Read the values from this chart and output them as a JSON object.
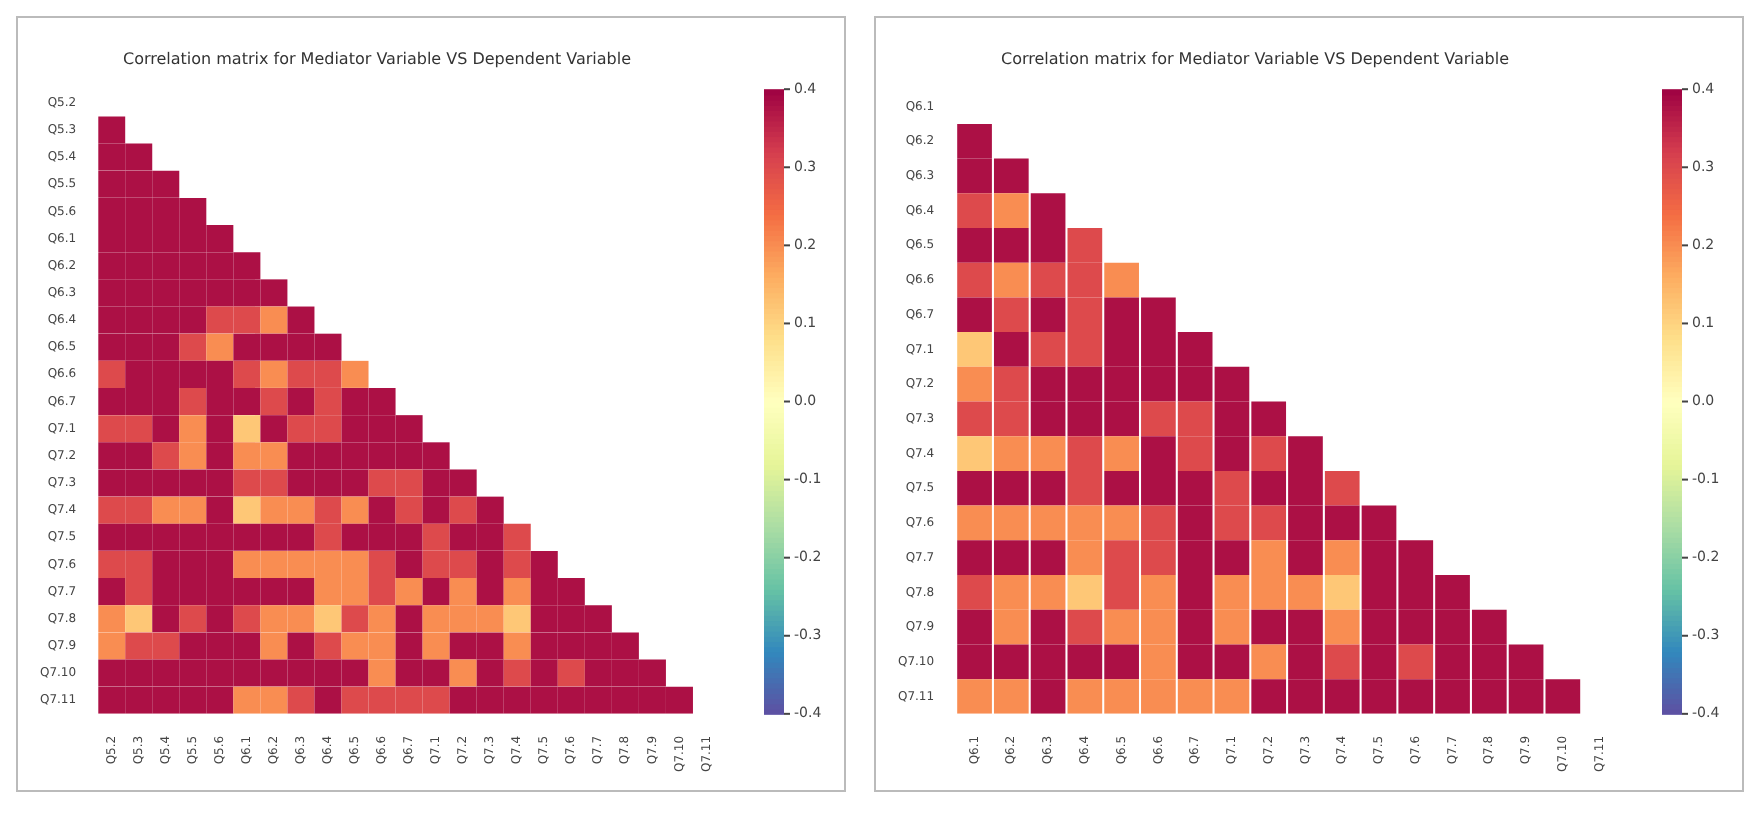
{
  "chart_data": [
    {
      "type": "heatmap",
      "title": "Correlation matrix for Mediator Variable VS Dependent Variable",
      "categories": [
        "Q5.2",
        "Q5.3",
        "Q5.4",
        "Q5.5",
        "Q5.6",
        "Q6.1",
        "Q6.2",
        "Q6.3",
        "Q6.4",
        "Q6.5",
        "Q6.6",
        "Q6.7",
        "Q7.1",
        "Q7.2",
        "Q7.3",
        "Q7.4",
        "Q7.5",
        "Q7.6",
        "Q7.7",
        "Q7.8",
        "Q7.9",
        "Q7.10",
        "Q7.11"
      ],
      "y_categories": [
        "Q5.2",
        "Q5.3",
        "Q5.4",
        "Q5.5",
        "Q5.6",
        "Q6.1",
        "Q6.2",
        "Q6.3",
        "Q6.4",
        "Q6.5",
        "Q6.6",
        "Q6.7",
        "Q7.1",
        "Q7.2",
        "Q7.3",
        "Q7.4",
        "Q7.5",
        "Q7.6",
        "Q7.7",
        "Q7.8",
        "Q7.9",
        "Q7.10",
        "Q7.11"
      ],
      "cells": [
        [
          null,
          null,
          null,
          null,
          null,
          null,
          null,
          null,
          null,
          null,
          null,
          null,
          null,
          null,
          null,
          null,
          null,
          null,
          null,
          null,
          null,
          null,
          null
        ],
        [
          0.38,
          null,
          null,
          null,
          null,
          null,
          null,
          null,
          null,
          null,
          null,
          null,
          null,
          null,
          null,
          null,
          null,
          null,
          null,
          null,
          null,
          null,
          null
        ],
        [
          0.38,
          0.38,
          null,
          null,
          null,
          null,
          null,
          null,
          null,
          null,
          null,
          null,
          null,
          null,
          null,
          null,
          null,
          null,
          null,
          null,
          null,
          null,
          null
        ],
        [
          0.38,
          0.38,
          0.38,
          null,
          null,
          null,
          null,
          null,
          null,
          null,
          null,
          null,
          null,
          null,
          null,
          null,
          null,
          null,
          null,
          null,
          null,
          null,
          null
        ],
        [
          0.38,
          0.38,
          0.38,
          0.38,
          null,
          null,
          null,
          null,
          null,
          null,
          null,
          null,
          null,
          null,
          null,
          null,
          null,
          null,
          null,
          null,
          null,
          null,
          null
        ],
        [
          0.38,
          0.38,
          0.38,
          0.38,
          0.38,
          null,
          null,
          null,
          null,
          null,
          null,
          null,
          null,
          null,
          null,
          null,
          null,
          null,
          null,
          null,
          null,
          null,
          null
        ],
        [
          0.38,
          0.38,
          0.38,
          0.38,
          0.38,
          0.38,
          null,
          null,
          null,
          null,
          null,
          null,
          null,
          null,
          null,
          null,
          null,
          null,
          null,
          null,
          null,
          null,
          null
        ],
        [
          0.38,
          0.38,
          0.38,
          0.38,
          0.38,
          0.38,
          0.38,
          null,
          null,
          null,
          null,
          null,
          null,
          null,
          null,
          null,
          null,
          null,
          null,
          null,
          null,
          null,
          null
        ],
        [
          0.38,
          0.38,
          0.38,
          0.38,
          0.3,
          0.3,
          0.2,
          0.38,
          null,
          null,
          null,
          null,
          null,
          null,
          null,
          null,
          null,
          null,
          null,
          null,
          null,
          null,
          null
        ],
        [
          0.38,
          0.38,
          0.38,
          0.3,
          0.2,
          0.38,
          0.38,
          0.38,
          0.38,
          null,
          null,
          null,
          null,
          null,
          null,
          null,
          null,
          null,
          null,
          null,
          null,
          null,
          null
        ],
        [
          0.3,
          0.38,
          0.38,
          0.38,
          0.38,
          0.3,
          0.2,
          0.3,
          0.3,
          0.2,
          null,
          null,
          null,
          null,
          null,
          null,
          null,
          null,
          null,
          null,
          null,
          null,
          null
        ],
        [
          0.38,
          0.38,
          0.38,
          0.3,
          0.38,
          0.38,
          0.3,
          0.38,
          0.3,
          0.38,
          0.38,
          null,
          null,
          null,
          null,
          null,
          null,
          null,
          null,
          null,
          null,
          null,
          null
        ],
        [
          0.3,
          0.3,
          0.38,
          0.2,
          0.38,
          0.12,
          0.38,
          0.3,
          0.3,
          0.38,
          0.38,
          0.38,
          null,
          null,
          null,
          null,
          null,
          null,
          null,
          null,
          null,
          null,
          null
        ],
        [
          0.38,
          0.38,
          0.3,
          0.2,
          0.38,
          0.2,
          0.2,
          0.38,
          0.38,
          0.38,
          0.38,
          0.38,
          0.38,
          null,
          null,
          null,
          null,
          null,
          null,
          null,
          null,
          null,
          null
        ],
        [
          0.38,
          0.38,
          0.38,
          0.38,
          0.38,
          0.3,
          0.3,
          0.38,
          0.38,
          0.38,
          0.3,
          0.3,
          0.38,
          0.38,
          null,
          null,
          null,
          null,
          null,
          null,
          null,
          null,
          null
        ],
        [
          0.3,
          0.3,
          0.2,
          0.2,
          0.38,
          0.12,
          0.2,
          0.2,
          0.3,
          0.2,
          0.38,
          0.3,
          0.38,
          0.3,
          0.38,
          null,
          null,
          null,
          null,
          null,
          null,
          null,
          null
        ],
        [
          0.38,
          0.38,
          0.38,
          0.38,
          0.38,
          0.38,
          0.38,
          0.38,
          0.3,
          0.38,
          0.38,
          0.38,
          0.3,
          0.38,
          0.38,
          0.3,
          null,
          null,
          null,
          null,
          null,
          null,
          null
        ],
        [
          0.3,
          0.3,
          0.38,
          0.38,
          0.38,
          0.2,
          0.2,
          0.2,
          0.2,
          0.2,
          0.3,
          0.38,
          0.3,
          0.3,
          0.38,
          0.3,
          0.38,
          null,
          null,
          null,
          null,
          null,
          null
        ],
        [
          0.38,
          0.3,
          0.38,
          0.38,
          0.38,
          0.38,
          0.38,
          0.38,
          0.2,
          0.2,
          0.3,
          0.2,
          0.38,
          0.2,
          0.38,
          0.2,
          0.38,
          0.38,
          null,
          null,
          null,
          null,
          null
        ],
        [
          0.2,
          0.12,
          0.38,
          0.3,
          0.38,
          0.3,
          0.2,
          0.2,
          0.12,
          0.3,
          0.2,
          0.38,
          0.2,
          0.2,
          0.2,
          0.12,
          0.38,
          0.38,
          0.38,
          null,
          null,
          null,
          null
        ],
        [
          0.2,
          0.3,
          0.3,
          0.38,
          0.38,
          0.38,
          0.2,
          0.38,
          0.3,
          0.2,
          0.2,
          0.38,
          0.2,
          0.38,
          0.38,
          0.2,
          0.38,
          0.38,
          0.38,
          0.38,
          null,
          null,
          null
        ],
        [
          0.38,
          0.38,
          0.38,
          0.38,
          0.38,
          0.38,
          0.38,
          0.38,
          0.38,
          0.38,
          0.2,
          0.38,
          0.38,
          0.2,
          0.38,
          0.3,
          0.38,
          0.3,
          0.38,
          0.38,
          0.38,
          null,
          null
        ],
        [
          0.38,
          0.38,
          0.38,
          0.38,
          0.38,
          0.2,
          0.2,
          0.3,
          0.38,
          0.3,
          0.3,
          0.3,
          0.3,
          0.38,
          0.38,
          0.38,
          0.38,
          0.38,
          0.38,
          0.38,
          0.38,
          0.38,
          null
        ]
      ],
      "clim": [
        -0.4,
        0.4
      ],
      "cticks": [
        -0.4,
        -0.3,
        -0.2,
        -0.1,
        {
          "value": 0,
          "label": "0.0"
        },
        0.1,
        0.2,
        0.3,
        0.4
      ]
    },
    {
      "type": "heatmap",
      "title": "Correlation matrix for Mediator Variable VS Dependent Variable",
      "categories": [
        "Q6.1",
        "Q6.2",
        "Q6.3",
        "Q6.4",
        "Q6.5",
        "Q6.6",
        "Q6.7",
        "Q7.1",
        "Q7.2",
        "Q7.3",
        "Q7.4",
        "Q7.5",
        "Q7.6",
        "Q7.7",
        "Q7.8",
        "Q7.9",
        "Q7.10",
        "Q7.11"
      ],
      "y_categories": [
        "Q6.1",
        "Q6.2",
        "Q6.3",
        "Q6.4",
        "Q6.5",
        "Q6.6",
        "Q6.7",
        "Q7.1",
        "Q7.2",
        "Q7.3",
        "Q7.4",
        "Q7.5",
        "Q7.6",
        "Q7.7",
        "Q7.8",
        "Q7.9",
        "Q7.10",
        "Q7.11"
      ],
      "cells": [
        [
          null,
          null,
          null,
          null,
          null,
          null,
          null,
          null,
          null,
          null,
          null,
          null,
          null,
          null,
          null,
          null,
          null,
          null
        ],
        [
          0.38,
          null,
          null,
          null,
          null,
          null,
          null,
          null,
          null,
          null,
          null,
          null,
          null,
          null,
          null,
          null,
          null,
          null
        ],
        [
          0.38,
          0.38,
          null,
          null,
          null,
          null,
          null,
          null,
          null,
          null,
          null,
          null,
          null,
          null,
          null,
          null,
          null,
          null
        ],
        [
          0.3,
          0.2,
          0.38,
          null,
          null,
          null,
          null,
          null,
          null,
          null,
          null,
          null,
          null,
          null,
          null,
          null,
          null,
          null
        ],
        [
          0.38,
          0.38,
          0.38,
          0.3,
          null,
          null,
          null,
          null,
          null,
          null,
          null,
          null,
          null,
          null,
          null,
          null,
          null,
          null
        ],
        [
          0.3,
          0.2,
          0.3,
          0.3,
          0.2,
          null,
          null,
          null,
          null,
          null,
          null,
          null,
          null,
          null,
          null,
          null,
          null,
          null
        ],
        [
          0.38,
          0.3,
          0.38,
          0.3,
          0.38,
          0.38,
          null,
          null,
          null,
          null,
          null,
          null,
          null,
          null,
          null,
          null,
          null,
          null
        ],
        [
          0.12,
          0.38,
          0.3,
          0.3,
          0.38,
          0.38,
          0.38,
          null,
          null,
          null,
          null,
          null,
          null,
          null,
          null,
          null,
          null,
          null
        ],
        [
          0.2,
          0.3,
          0.38,
          0.38,
          0.38,
          0.38,
          0.38,
          0.38,
          null,
          null,
          null,
          null,
          null,
          null,
          null,
          null,
          null,
          null
        ],
        [
          0.3,
          0.3,
          0.38,
          0.38,
          0.38,
          0.3,
          0.3,
          0.38,
          0.38,
          null,
          null,
          null,
          null,
          null,
          null,
          null,
          null,
          null
        ],
        [
          0.12,
          0.2,
          0.2,
          0.3,
          0.2,
          0.38,
          0.3,
          0.38,
          0.3,
          0.38,
          null,
          null,
          null,
          null,
          null,
          null,
          null,
          null
        ],
        [
          0.38,
          0.38,
          0.38,
          0.3,
          0.38,
          0.38,
          0.38,
          0.3,
          0.38,
          0.38,
          0.3,
          null,
          null,
          null,
          null,
          null,
          null,
          null
        ],
        [
          0.2,
          0.2,
          0.2,
          0.2,
          0.2,
          0.3,
          0.38,
          0.3,
          0.3,
          0.38,
          0.38,
          0.38,
          null,
          null,
          null,
          null,
          null,
          null
        ],
        [
          0.38,
          0.38,
          0.38,
          0.2,
          0.3,
          0.3,
          0.38,
          0.38,
          0.2,
          0.38,
          0.2,
          0.38,
          0.38,
          null,
          null,
          null,
          null,
          null
        ],
        [
          0.3,
          0.2,
          0.2,
          0.12,
          0.3,
          0.2,
          0.38,
          0.2,
          0.2,
          0.2,
          0.12,
          0.38,
          0.38,
          0.38,
          null,
          null,
          null,
          null
        ],
        [
          0.38,
          0.2,
          0.38,
          0.3,
          0.2,
          0.2,
          0.38,
          0.2,
          0.38,
          0.38,
          0.2,
          0.38,
          0.38,
          0.38,
          0.38,
          null,
          null,
          null
        ],
        [
          0.38,
          0.38,
          0.38,
          0.38,
          0.38,
          0.2,
          0.38,
          0.38,
          0.2,
          0.38,
          0.3,
          0.38,
          0.3,
          0.38,
          0.38,
          0.38,
          null,
          null
        ],
        [
          0.2,
          0.2,
          0.38,
          0.2,
          0.2,
          0.2,
          0.2,
          0.2,
          0.38,
          0.38,
          0.38,
          0.38,
          0.38,
          0.38,
          0.38,
          0.38,
          0.38,
          null
        ]
      ],
      "clim": [
        -0.4,
        0.4
      ],
      "cticks": [
        -0.4,
        -0.3,
        -0.2,
        -0.1,
        {
          "value": 0,
          "label": "0.0"
        },
        0.1,
        0.2,
        0.3,
        0.4
      ]
    }
  ]
}
